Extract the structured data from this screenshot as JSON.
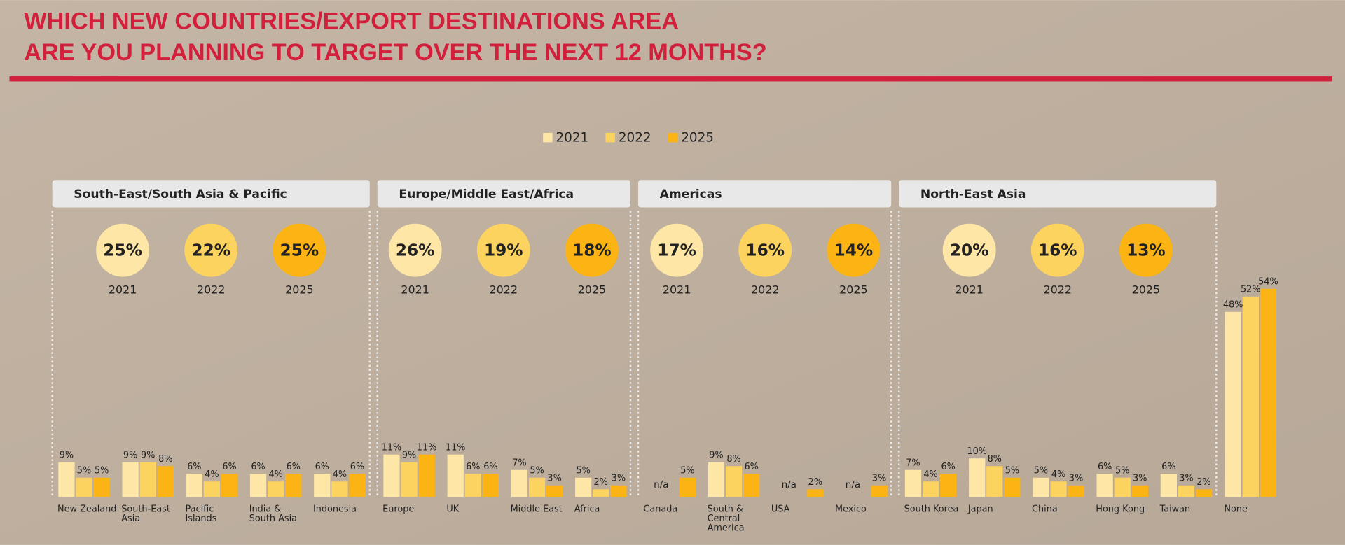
{
  "chart_data": {
    "type": "grouped-bar",
    "title_lines": [
      "WHICH NEW COUNTRIES/EXPORT DESTINATIONS AREA",
      "ARE YOU PLANNING TO TARGET OVER THE NEXT 12 MONTHS?"
    ],
    "series": [
      {
        "name": "2021",
        "color": "#fde6a6"
      },
      {
        "name": "2022",
        "color": "#fdd35f"
      },
      {
        "name": "2025",
        "color": "#fbb414"
      }
    ],
    "groups": [
      {
        "name": "South-East/South Asia & Pacific",
        "summary": {
          "values": [
            25,
            22,
            25
          ],
          "value_labels": [
            "25%",
            "22%",
            "25%"
          ]
        },
        "categories": [
          {
            "label": [
              "New Zealand"
            ],
            "values": [
              9,
              5,
              5
            ],
            "value_labels": [
              "9%",
              "5%",
              "5%"
            ]
          },
          {
            "label": [
              "South-East",
              "Asia"
            ],
            "values": [
              9,
              9,
              8
            ],
            "value_labels": [
              "9%",
              "9%",
              "8%"
            ]
          },
          {
            "label": [
              "Pacific",
              "Islands"
            ],
            "values": [
              6,
              4,
              6
            ],
            "value_labels": [
              "6%",
              "4%",
              "6%"
            ]
          },
          {
            "label": [
              "India &",
              "South Asia"
            ],
            "values": [
              6,
              4,
              6
            ],
            "value_labels": [
              "6%",
              "4%",
              "6%"
            ]
          },
          {
            "label": [
              "Indonesia"
            ],
            "values": [
              6,
              4,
              6
            ],
            "value_labels": [
              "6%",
              "4%",
              "6%"
            ]
          }
        ]
      },
      {
        "name": "Europe/Middle East/Africa",
        "summary": {
          "values": [
            26,
            19,
            18
          ],
          "value_labels": [
            "26%",
            "19%",
            "18%"
          ]
        },
        "categories": [
          {
            "label": [
              "Europe"
            ],
            "values": [
              11,
              9,
              11
            ],
            "value_labels": [
              "11%",
              "9%",
              "11%"
            ]
          },
          {
            "label": [
              "UK"
            ],
            "values": [
              11,
              6,
              6
            ],
            "value_labels": [
              "11%",
              "6%",
              "6%"
            ]
          },
          {
            "label": [
              "Middle East"
            ],
            "values": [
              7,
              5,
              3
            ],
            "value_labels": [
              "7%",
              "5%",
              "3%"
            ]
          },
          {
            "label": [
              "Africa"
            ],
            "values": [
              5,
              2,
              3
            ],
            "value_labels": [
              "5%",
              "2%",
              "3%"
            ]
          }
        ]
      },
      {
        "name": "Americas",
        "summary": {
          "values": [
            17,
            16,
            14
          ],
          "value_labels": [
            "17%",
            "16%",
            "14%"
          ]
        },
        "categories": [
          {
            "label": [
              "Canada"
            ],
            "values": [
              null,
              null,
              5
            ],
            "value_labels": [
              "n/a",
              null,
              "5%"
            ]
          },
          {
            "label": [
              "South &",
              "Central",
              "America"
            ],
            "values": [
              9,
              8,
              6
            ],
            "value_labels": [
              "9%",
              "8%",
              "6%"
            ]
          },
          {
            "label": [
              "USA"
            ],
            "values": [
              null,
              null,
              2
            ],
            "value_labels": [
              "n/a",
              null,
              "2%"
            ]
          },
          {
            "label": [
              "Mexico"
            ],
            "values": [
              null,
              null,
              3
            ],
            "value_labels": [
              "n/a",
              null,
              "3%"
            ]
          }
        ]
      },
      {
        "name": "North-East Asia",
        "summary": {
          "values": [
            20,
            16,
            13
          ],
          "value_labels": [
            "20%",
            "16%",
            "13%"
          ]
        },
        "categories": [
          {
            "label": [
              "South Korea"
            ],
            "values": [
              7,
              4,
              6
            ],
            "value_labels": [
              "7%",
              "4%",
              "6%"
            ]
          },
          {
            "label": [
              "Japan"
            ],
            "values": [
              10,
              8,
              5
            ],
            "value_labels": [
              "10%",
              "8%",
              "5%"
            ]
          },
          {
            "label": [
              "China"
            ],
            "values": [
              5,
              4,
              3
            ],
            "value_labels": [
              "5%",
              "4%",
              "3%"
            ]
          },
          {
            "label": [
              "Hong Kong"
            ],
            "values": [
              6,
              5,
              3
            ],
            "value_labels": [
              "6%",
              "5%",
              "3%"
            ]
          },
          {
            "label": [
              "Taiwan"
            ],
            "values": [
              6,
              3,
              2
            ],
            "value_labels": [
              "6%",
              "3%",
              "2%"
            ]
          }
        ]
      }
    ],
    "standalone": {
      "label": [
        "None"
      ],
      "values": [
        48,
        52,
        54
      ],
      "value_labels": [
        "48%",
        "52%",
        "54%"
      ]
    }
  }
}
